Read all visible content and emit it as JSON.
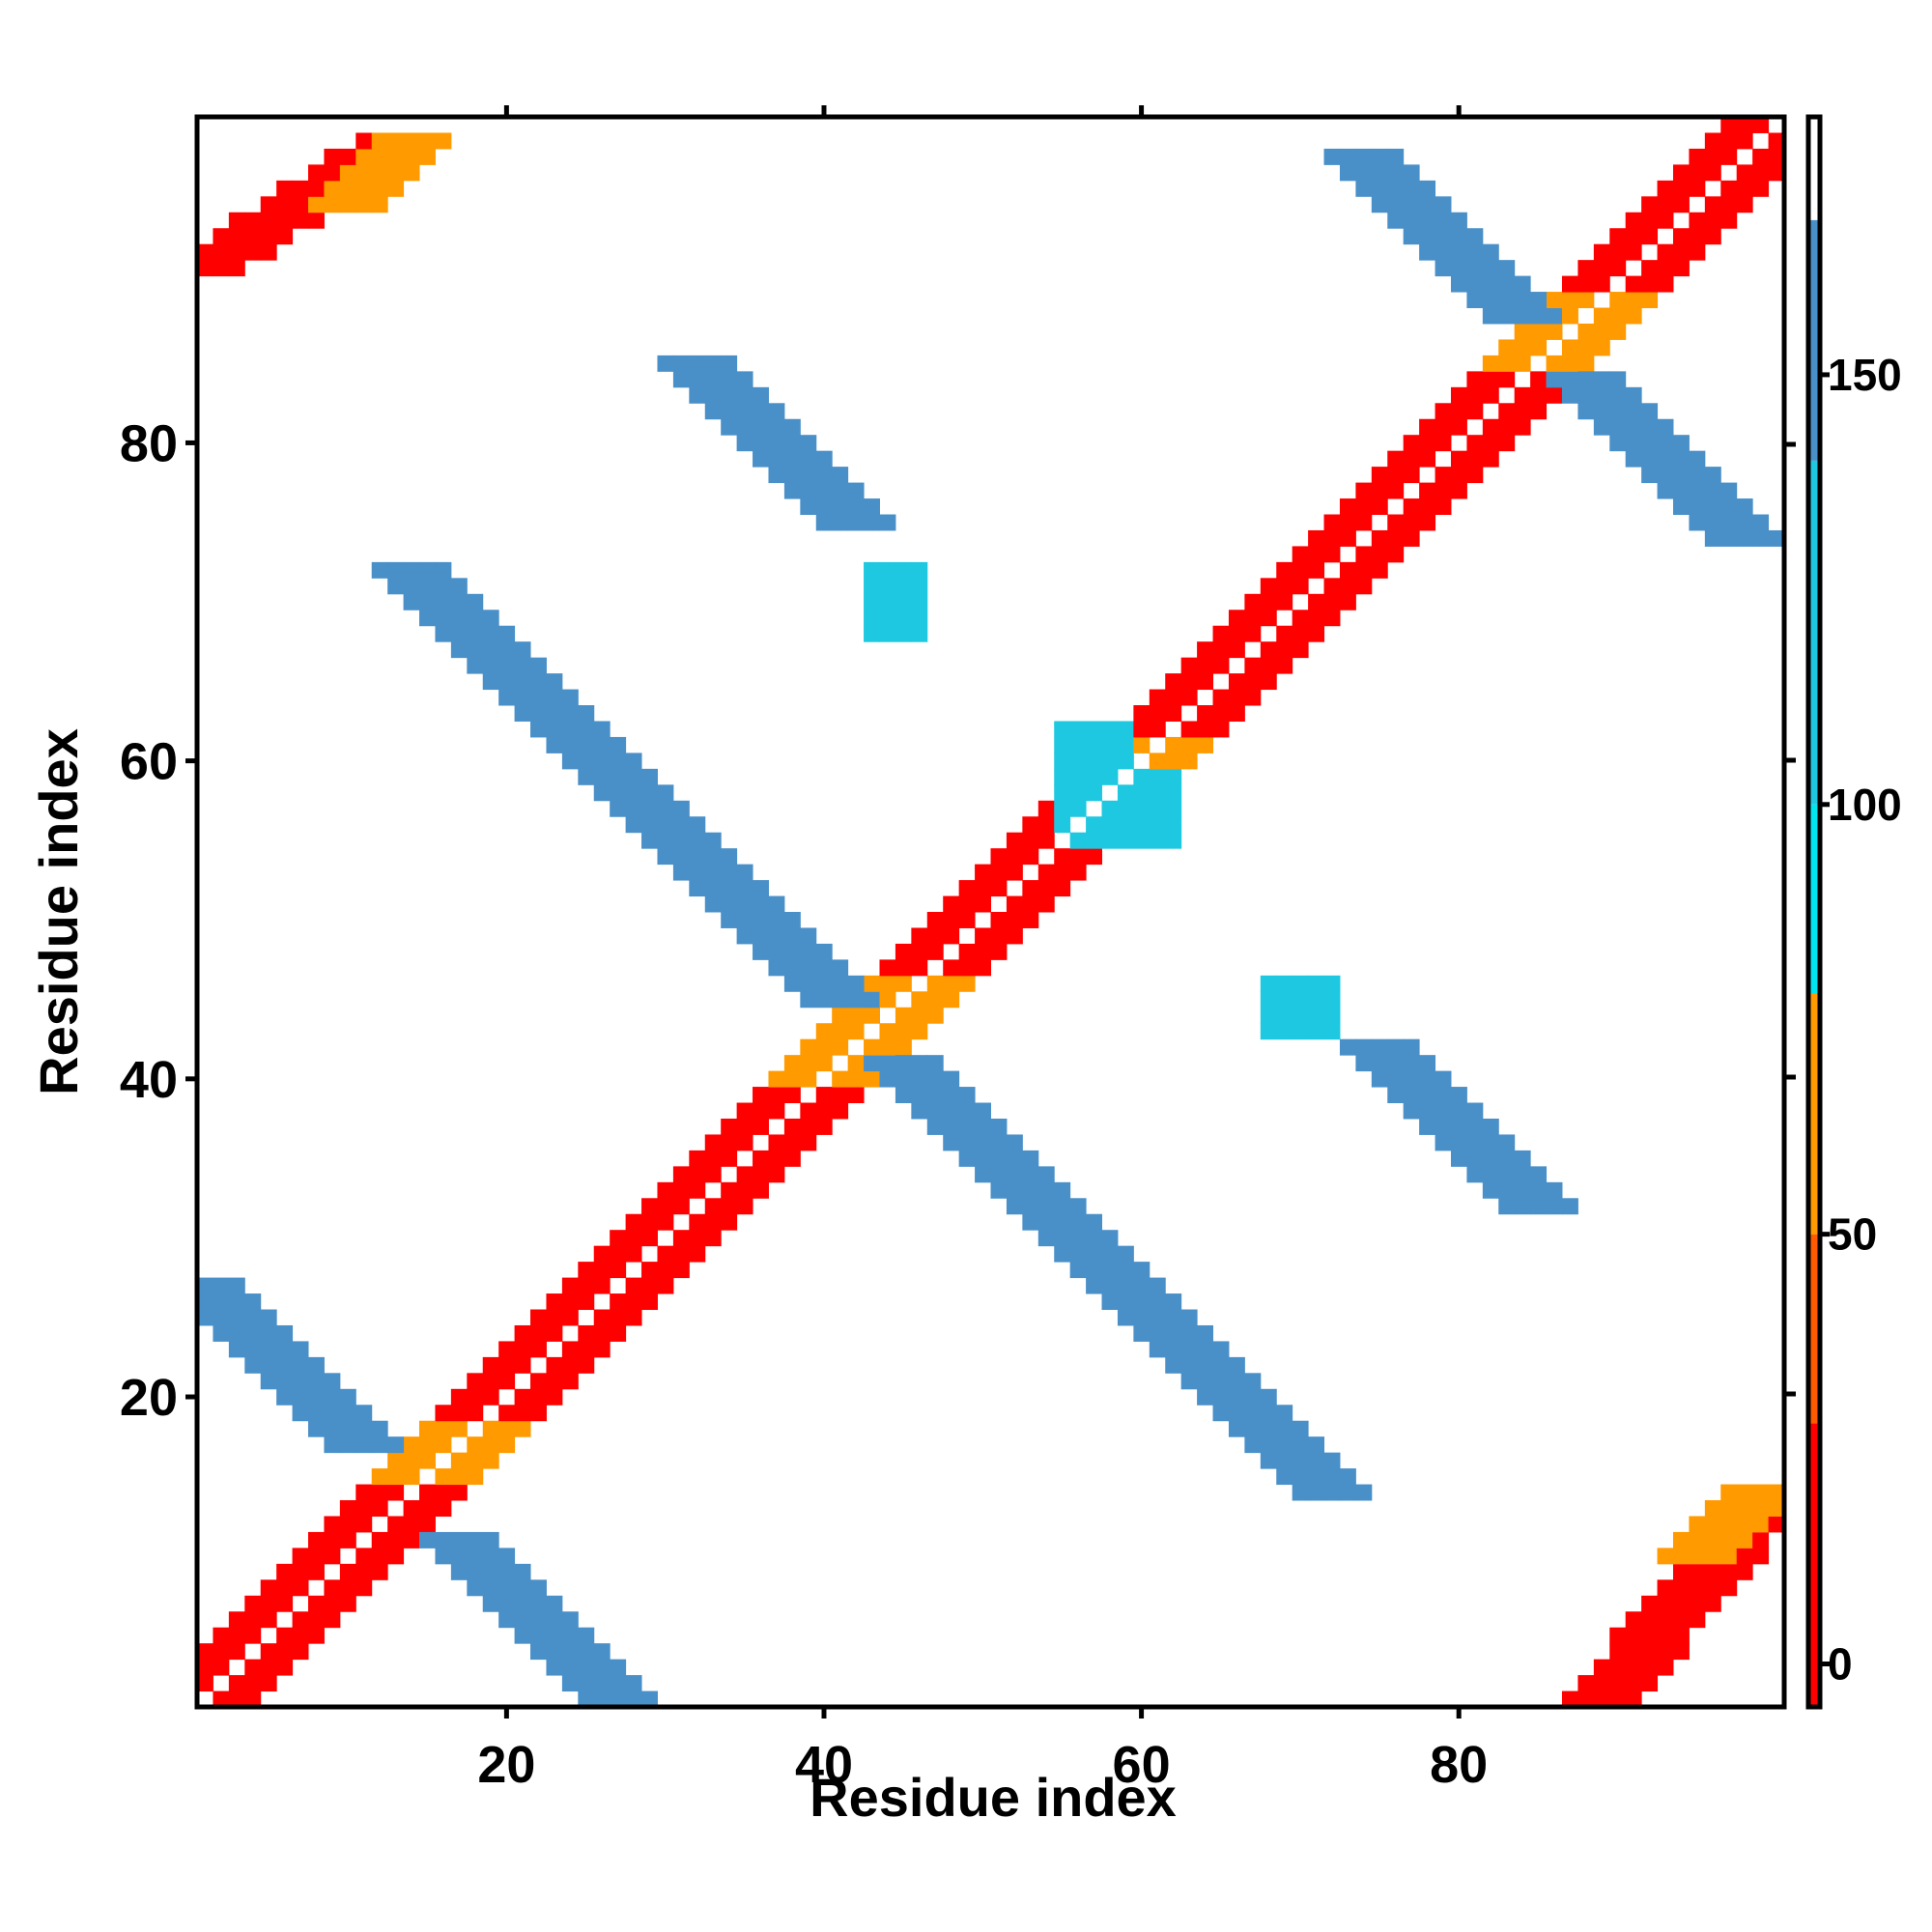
{
  "chart_data": {
    "type": "heatmap",
    "title": "",
    "xlabel": "Residue index",
    "ylabel": "Residue index",
    "xlim": [
      1,
      100
    ],
    "ylim": [
      1,
      100
    ],
    "xticks": [
      20,
      40,
      60,
      80
    ],
    "yticks": [
      20,
      40,
      60,
      80
    ],
    "colorbar": {
      "range": [
        -5,
        180
      ],
      "ticks": [
        0,
        50,
        100,
        150
      ],
      "bands": [
        {
          "from": -5,
          "to": 28,
          "color": "#ff0000"
        },
        {
          "from": 28,
          "to": 50,
          "color": "#ff5a00"
        },
        {
          "from": 50,
          "to": 78,
          "color": "#ff9a00"
        },
        {
          "from": 78,
          "to": 100,
          "color": "#00e5ee"
        },
        {
          "from": 100,
          "to": 140,
          "color": "#1ec8e0"
        },
        {
          "from": 140,
          "to": 168,
          "color": "#4a90c8"
        },
        {
          "from": 168,
          "to": 180,
          "color": "#ffffff"
        }
      ]
    },
    "colors": {
      "red": "#ff0000",
      "orange_red": "#ff5a00",
      "orange": "#ff9a00",
      "cyan": "#00e5ee",
      "light_blue": "#1ec8e0",
      "steel_blue": "#4a90c8"
    },
    "features": [
      {
        "kind": "diag",
        "x0": 1,
        "y0": 1,
        "x1": 100,
        "y1": 100,
        "value": 5,
        "width": 3
      },
      {
        "kind": "diag",
        "x0": 15,
        "y0": 15,
        "x1": 18,
        "y1": 18,
        "value": 60,
        "width": 3
      },
      {
        "kind": "diag",
        "x0": 40,
        "y0": 40,
        "x1": 46,
        "y1": 46,
        "value": 60,
        "width": 3
      },
      {
        "kind": "diag",
        "x0": 58,
        "y0": 58,
        "x1": 61,
        "y1": 61,
        "value": 60,
        "width": 3
      },
      {
        "kind": "diag",
        "x0": 85,
        "y0": 85,
        "x1": 89,
        "y1": 89,
        "value": 60,
        "width": 3
      },
      {
        "kind": "anti",
        "x0": 1,
        "y0": 27,
        "x1": 11,
        "y1": 17,
        "value": 150,
        "width": 2
      },
      {
        "kind": "anti",
        "x0": 17,
        "y0": 11,
        "x1": 27,
        "y1": 1,
        "value": 150,
        "width": 2
      },
      {
        "kind": "anti",
        "x0": 14,
        "y0": 72,
        "x1": 41,
        "y1": 45,
        "value": 150,
        "width": 2
      },
      {
        "kind": "anti",
        "x0": 45,
        "y0": 41,
        "x1": 72,
        "y1": 14,
        "value": 150,
        "width": 2
      },
      {
        "kind": "anti",
        "x0": 32,
        "y0": 85,
        "x1": 42,
        "y1": 75,
        "value": 150,
        "width": 2
      },
      {
        "kind": "anti",
        "x0": 75,
        "y0": 42,
        "x1": 85,
        "y1": 32,
        "value": 150,
        "width": 2
      },
      {
        "kind": "anti",
        "x0": 74,
        "y0": 98,
        "x1": 84,
        "y1": 88,
        "value": 150,
        "width": 2
      },
      {
        "kind": "anti",
        "x0": 88,
        "y0": 84,
        "x1": 98,
        "y1": 74,
        "value": 150,
        "width": 2
      },
      {
        "kind": "block",
        "x0": 43,
        "y0": 68,
        "x1": 46,
        "y1": 72,
        "value": 100
      },
      {
        "kind": "block",
        "x0": 68,
        "y0": 43,
        "x1": 72,
        "y1": 46,
        "value": 100
      },
      {
        "kind": "block",
        "x0": 55,
        "y0": 55,
        "x1": 59,
        "y1": 62,
        "value": 100
      },
      {
        "kind": "block",
        "x0": 55,
        "y0": 55,
        "x1": 62,
        "y1": 59,
        "value": 100
      },
      {
        "kind": "anti",
        "x0": 1,
        "y0": 91,
        "x1": 13,
        "y1": 99,
        "value": 10,
        "width": 2
      },
      {
        "kind": "anti",
        "x0": 89,
        "y0": 1,
        "x1": 99,
        "y1": 13,
        "value": 10,
        "width": 2
      },
      {
        "kind": "anti",
        "x0": 10,
        "y0": 95,
        "x1": 14,
        "y1": 99,
        "value": 60,
        "width": 2
      },
      {
        "kind": "anti",
        "x0": 95,
        "y0": 10,
        "x1": 99,
        "y1": 14,
        "value": 60,
        "width": 2
      }
    ]
  }
}
